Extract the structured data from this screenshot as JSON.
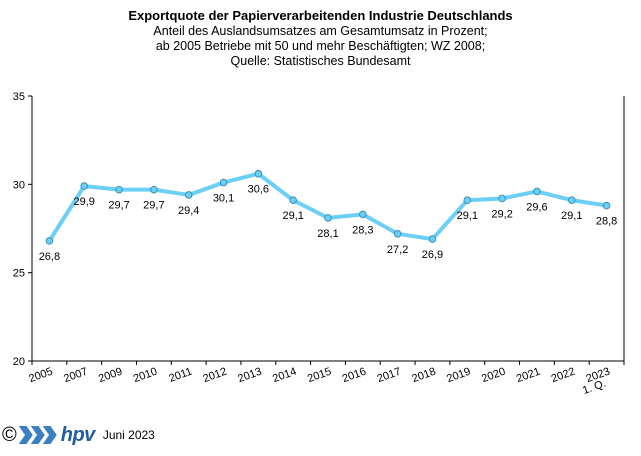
{
  "header": {
    "title": "Exportquote der Papierverarbeitenden Industrie Deutschlands",
    "subtitle_1": "Anteil des Auslandsumsatzes am Gesamtumsatz in Prozent;",
    "subtitle_2": "ab 2005 Betriebe mit 50 und mehr Beschäftigten; WZ 2008;",
    "subtitle_3": "Quelle: Statistisches Bundesamt"
  },
  "chart_data": {
    "type": "line",
    "title": "Exportquote der Papierverarbeitenden Industrie Deutschlands",
    "xlabel": "",
    "ylabel": "",
    "ylim": [
      20,
      35
    ],
    "yticks": [
      20,
      25,
      30,
      35
    ],
    "grid": false,
    "categories": [
      "2005",
      "2007",
      "2009",
      "2010",
      "2011",
      "2012",
      "2013",
      "2014",
      "2015",
      "2016",
      "2017",
      "2018",
      "2019",
      "2020",
      "2021",
      "2022",
      "1. Q. 2023"
    ],
    "series": [
      {
        "name": "Exportquote",
        "color": "#6ccff6",
        "values": [
          26.8,
          29.9,
          29.7,
          29.7,
          29.4,
          30.1,
          30.6,
          29.1,
          28.1,
          28.3,
          27.2,
          26.9,
          29.1,
          29.2,
          29.6,
          29.1,
          28.8
        ],
        "labels": [
          "26,8",
          "29,9",
          "29,7",
          "29,7",
          "29,4",
          "30,1",
          "30,6",
          "29,1",
          "28,1",
          "28,3",
          "27,2",
          "26,9",
          "29,1",
          "29,2",
          "29,6",
          "29,1",
          "28,8"
        ]
      }
    ]
  },
  "footer": {
    "copyright_symbol": "©",
    "logo_text": "hpv",
    "date": "Juni 2023"
  }
}
